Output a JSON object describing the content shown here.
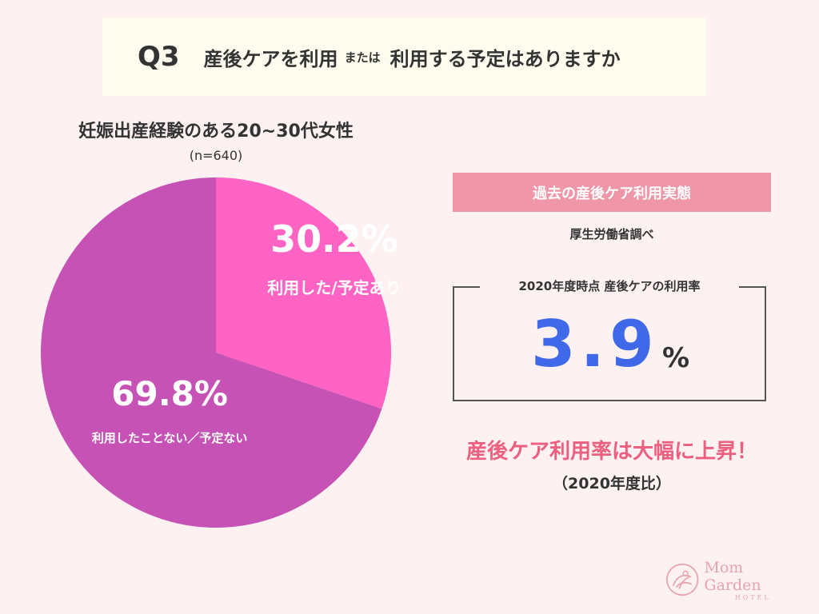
{
  "header": {
    "q_number": "Q3",
    "question_part1": "産後ケアを利用",
    "question_connector": "または",
    "question_part2": "利用する予定はありますか"
  },
  "chart_data": {
    "type": "pie",
    "title": "妊娠出産経験のある20~30代女性",
    "subtitle": "(n=640)",
    "slices": [
      {
        "label": "利用した/予定あり",
        "value": 30.2,
        "display": "30.2%",
        "color": "#ff63c3"
      },
      {
        "label": "利用したことない／予定ない",
        "value": 69.8,
        "display": "69.8%",
        "color": "#c552b4"
      }
    ],
    "start_angle_deg": 0,
    "direction": "clockwise"
  },
  "past": {
    "banner": "過去の産後ケア利用実態",
    "source": "厚生労働省調べ",
    "rate_label": "2020年度時点 産後ケアの利用率",
    "rate_value": "3.9",
    "rate_unit": "%"
  },
  "conclusion": {
    "text": "産後ケア利用率は大幅に上昇！",
    "note": "（2020年度比）"
  },
  "logo": {
    "name": "Mom Garden",
    "sub": "HOTEL",
    "color": "#e8a3ad"
  }
}
